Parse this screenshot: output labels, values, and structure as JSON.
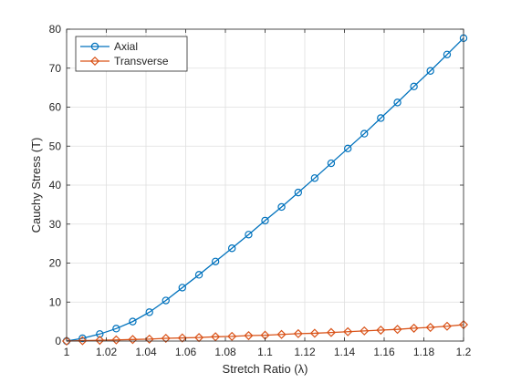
{
  "chart_data": {
    "type": "line",
    "title": "",
    "xlabel": "Stretch Ratio (λ)",
    "ylabel": "Cauchy Stress (T)",
    "xlim": [
      1,
      1.2
    ],
    "ylim": [
      0,
      80
    ],
    "xticks": [
      1,
      1.02,
      1.04,
      1.06,
      1.08,
      1.1,
      1.12,
      1.14,
      1.16,
      1.18,
      1.2
    ],
    "xtick_labels": [
      "1",
      "1.02",
      "1.04",
      "1.06",
      "1.08",
      "1.1",
      "1.12",
      "1.14",
      "1.16",
      "1.18",
      "1.2"
    ],
    "yticks": [
      0,
      10,
      20,
      30,
      40,
      50,
      60,
      70,
      80
    ],
    "ytick_labels": [
      "0",
      "10",
      "20",
      "30",
      "40",
      "50",
      "60",
      "70",
      "80"
    ],
    "grid": true,
    "legend_position": "top-left",
    "x": [
      1.0,
      1.008,
      1.0167,
      1.025,
      1.0333,
      1.0417,
      1.05,
      1.0583,
      1.0667,
      1.075,
      1.0833,
      1.0917,
      1.1,
      1.1083,
      1.1167,
      1.125,
      1.1333,
      1.1417,
      1.15,
      1.1583,
      1.1667,
      1.175,
      1.1833,
      1.1917,
      1.2
    ],
    "series": [
      {
        "name": "Axial",
        "color": "#0072BD",
        "marker": "circle",
        "values": [
          0.0,
          0.7,
          1.8,
          3.2,
          5.0,
          7.4,
          10.4,
          13.7,
          17.0,
          20.4,
          23.8,
          27.3,
          30.9,
          34.4,
          38.1,
          41.8,
          45.6,
          49.4,
          53.2,
          57.2,
          61.2,
          65.3,
          69.3,
          73.5,
          77.7
        ]
      },
      {
        "name": "Transverse",
        "color": "#D95319",
        "marker": "diamond",
        "values": [
          0.0,
          0.1,
          0.2,
          0.3,
          0.4,
          0.5,
          0.7,
          0.8,
          0.9,
          1.1,
          1.2,
          1.4,
          1.5,
          1.7,
          1.9,
          2.0,
          2.2,
          2.4,
          2.6,
          2.8,
          3.0,
          3.3,
          3.5,
          3.8,
          4.2
        ]
      }
    ]
  }
}
